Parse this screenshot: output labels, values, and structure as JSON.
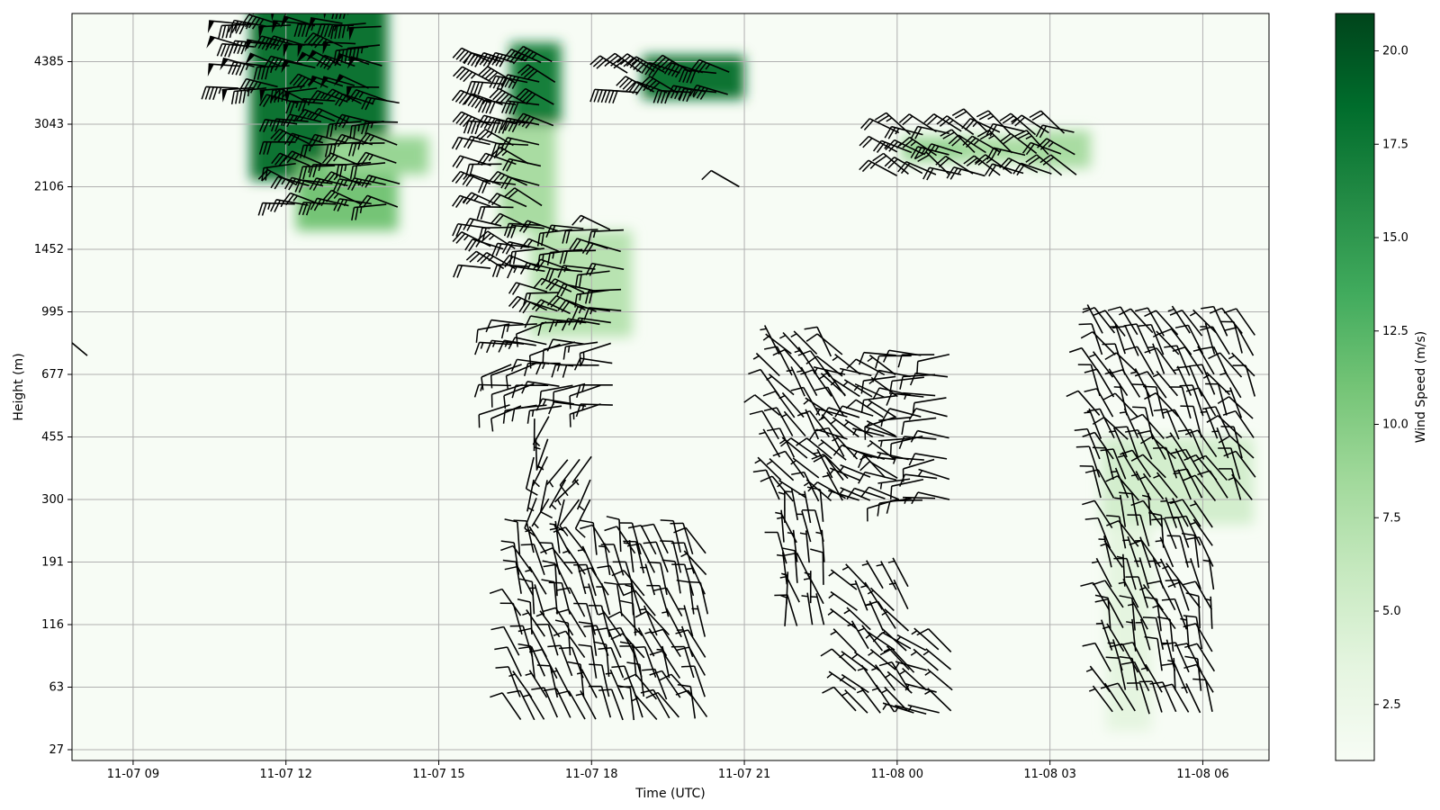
{
  "chart_data": {
    "type": "heatmap",
    "subtype": "wind-barbs-over-speed-heatmap",
    "xlabel": "Time (UTC)",
    "ylabel": "Height (m)",
    "x_ticks": [
      "11-07 09",
      "11-07 12",
      "11-07 15",
      "11-07 18",
      "11-07 21",
      "11-08 00",
      "11-08 03",
      "11-08 06"
    ],
    "y_ticks": [
      "27",
      "63",
      "116",
      "191",
      "300",
      "455",
      "677",
      "995",
      "1452",
      "2106",
      "3043",
      "4385"
    ],
    "xlim_hours": [
      7.8,
      31.3
    ],
    "grid": true,
    "colormap": "Greens",
    "colorbar": {
      "label": "Wind Speed (m/s)",
      "min": 1.0,
      "max": 21.0,
      "ticks": [
        "2.5",
        "5.0",
        "7.5",
        "10.0",
        "12.5",
        "15.0",
        "17.5",
        "20.0"
      ],
      "colors": [
        "#f7fcf5",
        "#e5f5e0",
        "#c7e9c0",
        "#a1d99b",
        "#74c476",
        "#41ab5d",
        "#238b45",
        "#006d2c",
        "#00441b"
      ]
    },
    "speed_regions": [
      {
        "t0": 11.3,
        "t1": 14.0,
        "l0": 9.1,
        "l1": 12.0,
        "speed": 18
      },
      {
        "t0": 12.2,
        "t1": 14.2,
        "l0": 8.3,
        "l1": 9.4,
        "speed": 11
      },
      {
        "t0": 12.8,
        "t1": 14.8,
        "l0": 9.2,
        "l1": 9.8,
        "speed": 9
      },
      {
        "t0": 16.4,
        "t1": 17.4,
        "l0": 10.0,
        "l1": 11.3,
        "speed": 17
      },
      {
        "t0": 16.2,
        "t1": 17.3,
        "l0": 8.3,
        "l1": 10.0,
        "speed": 8
      },
      {
        "t0": 16.8,
        "t1": 18.8,
        "l0": 6.6,
        "l1": 8.3,
        "speed": 7
      },
      {
        "t0": 19.0,
        "t1": 21.0,
        "l0": 10.4,
        "l1": 11.1,
        "speed": 18
      },
      {
        "t0": 24.1,
        "t1": 25.3,
        "l0": 9.4,
        "l1": 9.8,
        "speed": 9
      },
      {
        "t0": 25.3,
        "t1": 26.6,
        "l0": 9.4,
        "l1": 9.8,
        "speed": 8
      },
      {
        "t0": 26.6,
        "t1": 27.8,
        "l0": 9.3,
        "l1": 9.9,
        "speed": 8
      },
      {
        "t0": 28.0,
        "t1": 31.0,
        "l0": 3.6,
        "l1": 5.0,
        "speed": 5
      },
      {
        "t0": 28.1,
        "t1": 29.0,
        "l0": 0.3,
        "l1": 3.6,
        "speed": 3.5
      }
    ],
    "barb_regions": [
      {
        "t0": 11.1,
        "t1": 14.0,
        "l0": 10.6,
        "l1": 12.0,
        "dir": 280,
        "speed": 48
      },
      {
        "t0": 12.2,
        "t1": 14.2,
        "l0": 8.7,
        "l1": 10.5,
        "dir": 280,
        "speed": 25
      },
      {
        "t0": 16.0,
        "t1": 17.3,
        "l0": 10.0,
        "l1": 11.3,
        "dir": 285,
        "speed": 42
      },
      {
        "t0": 16.0,
        "t1": 17.1,
        "l0": 7.7,
        "l1": 9.9,
        "dir": 285,
        "speed": 22
      },
      {
        "t0": 17.1,
        "t1": 18.8,
        "l0": 7.0,
        "l1": 8.5,
        "dir": 280,
        "speed": 18
      },
      {
        "t0": 16.4,
        "t1": 18.4,
        "l0": 5.5,
        "l1": 7.0,
        "dir": 265,
        "speed": 12
      },
      {
        "t0": 16.9,
        "t1": 17.3,
        "l0": 4.0,
        "l1": 5.4,
        "dir": 195,
        "speed": 6
      },
      {
        "t0": 17.5,
        "t1": 18.0,
        "l0": 4.0,
        "l1": 4.9,
        "dir": 210,
        "speed": 6
      },
      {
        "t0": 18.7,
        "t1": 20.8,
        "l0": 10.5,
        "l1": 11.0,
        "dir": 290,
        "speed": 38
      },
      {
        "t0": 24.0,
        "t1": 27.7,
        "l0": 9.2,
        "l1": 9.9,
        "dir": 300,
        "speed": 22
      },
      {
        "t0": 16.6,
        "t1": 19.0,
        "l0": 0.5,
        "l1": 3.3,
        "dir": 340,
        "speed": 9
      },
      {
        "t0": 19.0,
        "t1": 20.4,
        "l0": 0.5,
        "l1": 3.3,
        "dir": 335,
        "speed": 9
      },
      {
        "t0": 21.7,
        "t1": 23.0,
        "l0": 4.0,
        "l1": 6.6,
        "dir": 320,
        "speed": 8
      },
      {
        "t0": 23.0,
        "t1": 24.0,
        "l0": 4.0,
        "l1": 6.2,
        "dir": 300,
        "speed": 7
      },
      {
        "t0": 24.0,
        "t1": 25.0,
        "l0": 4.0,
        "l1": 6.5,
        "dir": 270,
        "speed": 9
      },
      {
        "t0": 21.8,
        "t1": 22.6,
        "l0": 2.0,
        "l1": 3.8,
        "dir": 350,
        "speed": 7
      },
      {
        "t0": 23.2,
        "t1": 24.3,
        "l0": 0.6,
        "l1": 2.8,
        "dir": 320,
        "speed": 6
      },
      {
        "t0": 24.3,
        "t1": 25.1,
        "l0": 0.6,
        "l1": 1.8,
        "dir": 300,
        "speed": 6
      },
      {
        "t0": 28.0,
        "t1": 31.0,
        "l0": 4.0,
        "l1": 6.7,
        "dir": 330,
        "speed": 9
      },
      {
        "t0": 28.2,
        "t1": 30.4,
        "l0": 0.6,
        "l1": 3.6,
        "dir": 340,
        "speed": 8
      }
    ],
    "sparse_barbs": [
      {
        "t": 8.1,
        "l": 6.3,
        "dir": 310,
        "speed": 5
      },
      {
        "t": 20.9,
        "l": 9.0,
        "dir": 300,
        "speed": 8
      }
    ]
  }
}
